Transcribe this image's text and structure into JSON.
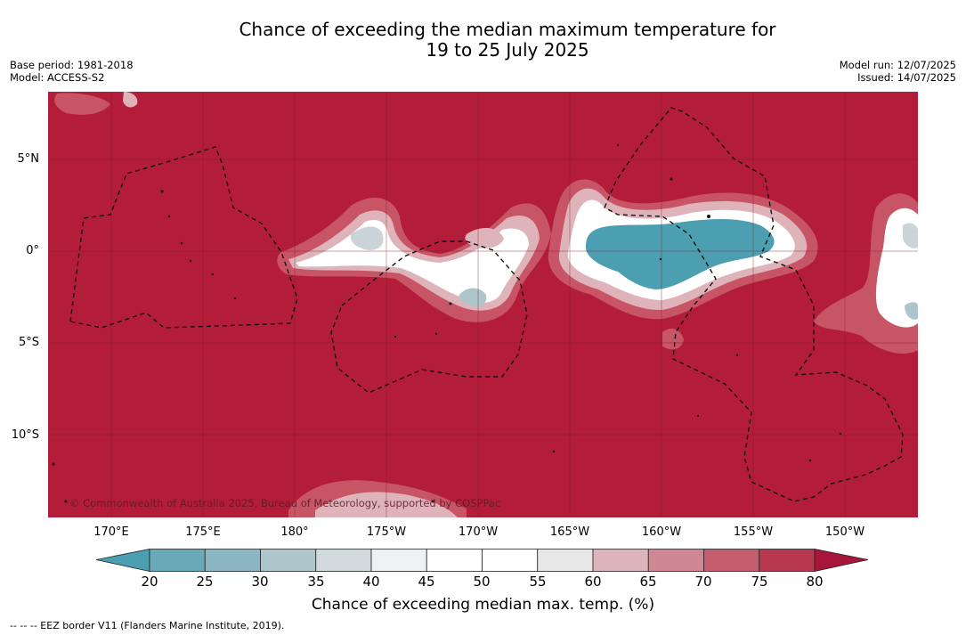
{
  "header": {
    "title_line1": "Chance of exceeding the median maximum temperature for",
    "title_line2": "19 to 25 July 2025",
    "base_period": "Base period: 1981-2018",
    "model": "Model: ACCESS-S2",
    "model_run": "Model run: 12/07/2025",
    "issued": "Issued: 14/07/2025"
  },
  "map": {
    "copyright": "© Commonwealth of Australia 2025, Bureau of Meteorology, supported by COSPPac",
    "lat_labels": [
      "5°N",
      "0°",
      "5°S",
      "10°S"
    ],
    "lon_labels": [
      "170°E",
      "175°E",
      "180°",
      "175°W",
      "170°W",
      "165°W",
      "160°W",
      "155°W",
      "150°W"
    ],
    "colors": {
      "high": "#b31d3a",
      "mid_high": "#c85566",
      "light_red": "#dfb3ba",
      "neutral": "#ffffff",
      "light_blue": "#cbd5d9",
      "low": "#49a1b2"
    }
  },
  "colorbar": {
    "ticks": [
      "20",
      "25",
      "30",
      "35",
      "40",
      "45",
      "50",
      "55",
      "60",
      "65",
      "70",
      "75",
      "80"
    ],
    "bins": [
      "#4b9fb1",
      "#6aaab8",
      "#8ab7c3",
      "#aec5cc",
      "#d0d9dc",
      "#eef1f3",
      "#ffffff",
      "#ffffff",
      "#e7e7e8",
      "#ddb4bb",
      "#cf8793",
      "#c45d6e",
      "#b8394f",
      "#a7163a"
    ],
    "label": "Chance of exceeding median max. temp. (%)"
  },
  "footnote": "--  --  -- EEZ border V11 (Flanders Marine Institute, 2019)."
}
